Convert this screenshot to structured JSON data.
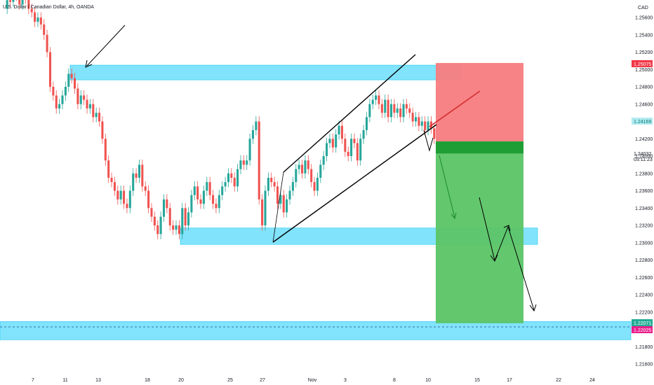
{
  "chart_data": {
    "type": "candlestick",
    "title": "U.S. Dollar / Canadian Dollar, 4h, OANDA",
    "currency_label": "CAD",
    "y_ticks": [
      "1.25600",
      "1.25400",
      "1.25200",
      "1.25000",
      "1.24800",
      "1.24600",
      "1.24200",
      "1.24000",
      "1.23800",
      "1.23600",
      "1.23400",
      "1.23200",
      "1.23000",
      "1.22800",
      "1.22600",
      "1.22400",
      "1.22200",
      "1.21800",
      "1.21600"
    ],
    "x_ticks": [
      "7",
      "11",
      "13",
      "18",
      "20",
      "25",
      "27",
      "Nov",
      "3",
      "8",
      "10",
      "15",
      "17",
      "22",
      "24"
    ],
    "price_labels": {
      "stop": {
        "text": "1.25075",
        "color": "#f23645"
      },
      "entry": {
        "text": "1.24169",
        "color": "#2fbdb0"
      },
      "current_price": "1.24032",
      "countdown": "03:11:23",
      "target": {
        "text": "1.22071",
        "color": "#22ab94"
      },
      "level": {
        "text": "1.22025",
        "color": "#e91e8c"
      }
    },
    "zones": [
      {
        "label": "resistance",
        "top": 1.2505,
        "bottom": 1.2488
      },
      {
        "label": "support",
        "top": 1.2317,
        "bottom": 1.2298
      },
      {
        "label": "lower-support",
        "top": 1.2209,
        "bottom": 1.2188
      }
    ],
    "position": {
      "stop": 1.25075,
      "entry": 1.24169,
      "target": 1.22071
    },
    "colors": {
      "up": "#26a69a",
      "down": "#ef5350",
      "zone": "#4dd7fb",
      "loss_box": "#f77c80",
      "profit_box": "#5bc466",
      "channel": "#000000"
    }
  }
}
